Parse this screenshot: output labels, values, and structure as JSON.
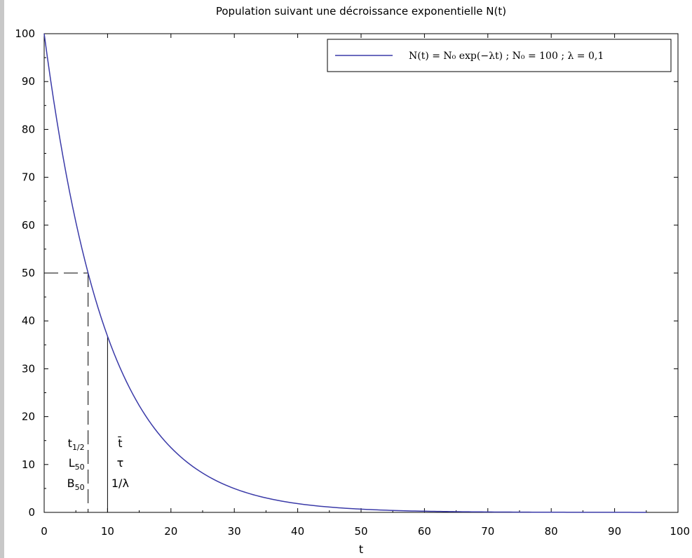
{
  "chart_data": {
    "type": "line",
    "title": "Population suivant une décroissance exponentielle N(t)",
    "xlabel": "t",
    "ylabel": "",
    "xlim": [
      0,
      100
    ],
    "ylim": [
      0,
      100
    ],
    "xticks": [
      0,
      10,
      20,
      30,
      40,
      50,
      60,
      70,
      80,
      90,
      100
    ],
    "yticks": [
      0,
      10,
      20,
      30,
      40,
      50,
      60,
      70,
      80,
      90,
      100
    ],
    "grid": false,
    "legend_position": "top-right",
    "series": [
      {
        "name": "N(t) = N₀ exp(−λt) ; N₀ = 100 ; λ = 0,1",
        "color": "#3a3aa8",
        "N0": 100,
        "lambda": 0.1,
        "x": [
          0,
          5,
          10,
          15,
          20,
          25,
          30,
          35,
          40,
          45,
          50,
          55,
          60,
          65,
          70,
          75,
          80,
          85,
          90,
          95
        ],
        "y": [
          100,
          60.65,
          36.79,
          22.31,
          13.53,
          8.21,
          4.98,
          3.02,
          1.83,
          1.11,
          0.67,
          0.41,
          0.25,
          0.15,
          0.09,
          0.06,
          0.03,
          0.02,
          0.01,
          0.01
        ]
      }
    ],
    "annotations": {
      "half_life": {
        "x": 6.93,
        "y": 50,
        "labels": [
          "t1/2",
          "L50",
          "B50"
        ]
      },
      "mean_life": {
        "x": 10,
        "y": 36.79,
        "labels": [
          "t̄",
          "τ",
          "1/λ"
        ]
      }
    }
  }
}
